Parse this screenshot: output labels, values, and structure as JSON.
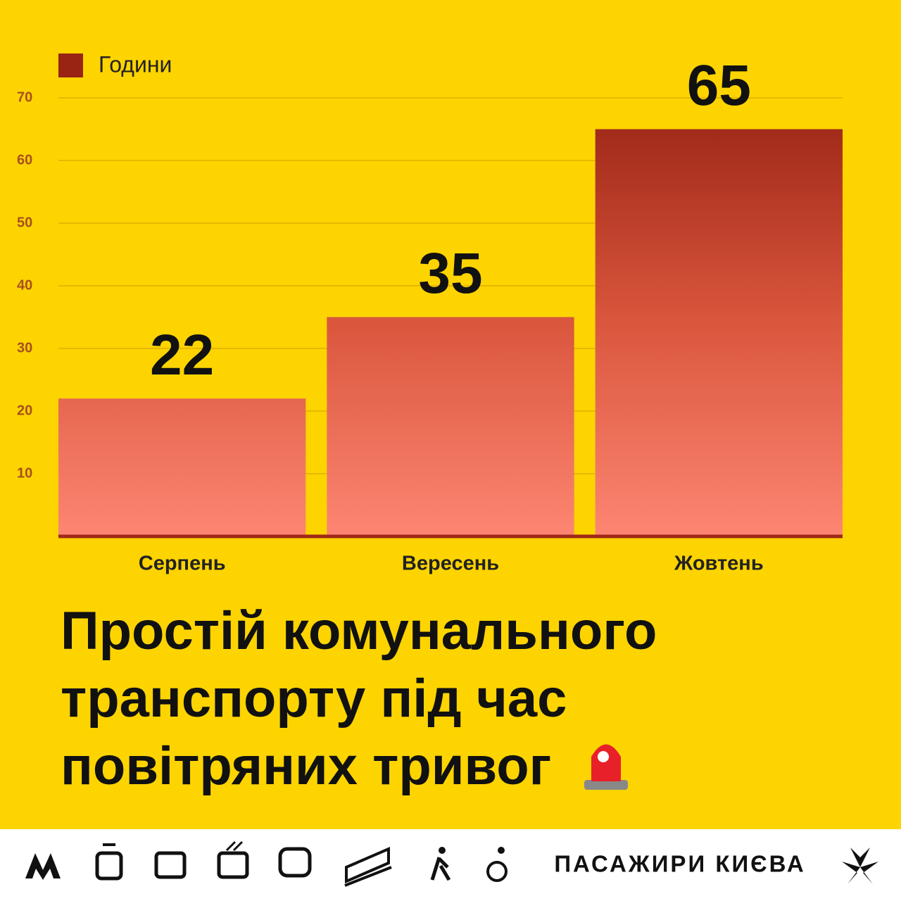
{
  "chart_data": {
    "type": "bar",
    "title": [
      "Простій комунального",
      "транспорту під час",
      "повітряних тривог"
    ],
    "categories": [
      "Серпень",
      "Вересень",
      "Жовтень"
    ],
    "series": [
      {
        "name": "Години",
        "color": "#e0553c",
        "values": [
          22,
          35,
          65
        ]
      }
    ],
    "ylim": [
      0,
      70
    ],
    "yticks": [
      10,
      20,
      30,
      40,
      50,
      60,
      70
    ],
    "grid": true,
    "legend": "top-left"
  },
  "footer": {
    "brand": "ПАСАЖИРИ КИЄВА"
  }
}
